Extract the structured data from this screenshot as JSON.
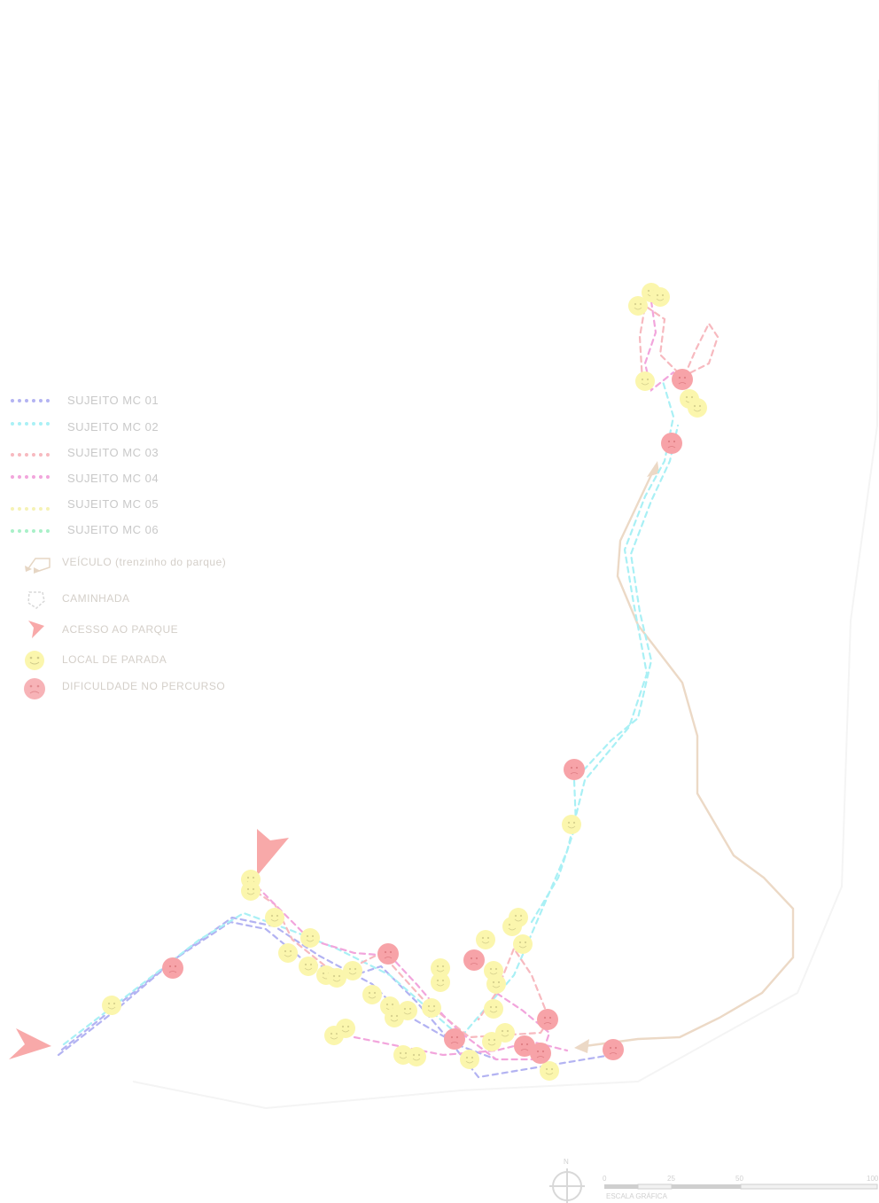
{
  "legend": {
    "subjects": [
      {
        "label": "SUJEITO MC 01",
        "color": "#b3b3f2"
      },
      {
        "label": "SUJEITO MC 02",
        "color": "#a9f0f5"
      },
      {
        "label": "SUJEITO MC 03",
        "color": "#f7b9bf"
      },
      {
        "label": "SUJEITO MC 04",
        "color": "#f2a5dc"
      },
      {
        "label": "SUJEITO MC 05",
        "color": "#f5f2b5"
      },
      {
        "label": "SUJEITO MC 06",
        "color": "#a8f0c8"
      }
    ],
    "symbols": {
      "vehicle": "VEÍCULO (trenzinho do parque)",
      "walk": "CAMINHADA",
      "access": "ACESSO AO PARQUE",
      "stop": "LOCAL DE PARADA",
      "difficulty": "DIFICULDADE NO PERCURSO"
    }
  },
  "colors": {
    "vehicle_route": "#ecd9c6",
    "access_marker": "#f8a9a9",
    "stop_marker": "#fbf6ad",
    "difficulty_marker": "#f7a3a8"
  },
  "north": {
    "label": "N"
  },
  "scale": {
    "ticks": [
      "0",
      "25",
      "50",
      "100"
    ],
    "caption": "ESCALA GRÁFICA"
  }
}
